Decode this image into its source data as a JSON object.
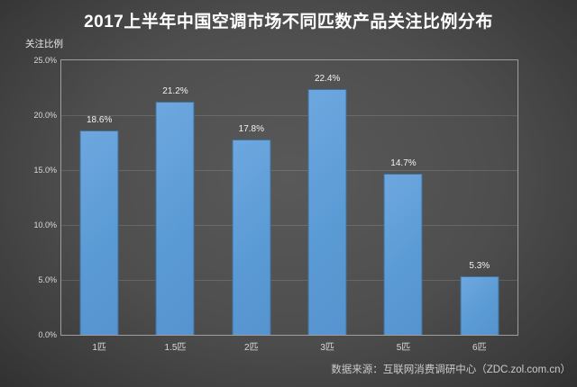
{
  "title": "2017上半年中国空调市场不同匹数产品关注比例分布",
  "y_axis_title": "关注比例",
  "footer_source": "数据来源：互联网消费调研中心（ZDC.zol.com.cn）",
  "colors": {
    "bar_fill": "#5b9bd5",
    "bar_fill_light": "#6ea7df",
    "bar_border": "#41719c",
    "background_center": "#595959",
    "background_edge": "#262626",
    "plot_border": "#9e9e9e",
    "gridline": "rgba(255,255,255,0.13)",
    "title_text": "#ffffff",
    "tick_text": "#d9d9d9",
    "value_label_text": "#f2f2f2",
    "footer_text": "#cbcbcb"
  },
  "chart_data": {
    "type": "bar",
    "title": "2017上半年中国空调市场不同匹数产品关注比例分布",
    "categories": [
      "1匹",
      "1.5匹",
      "2匹",
      "3匹",
      "5匹",
      "6匹"
    ],
    "values": [
      18.6,
      21.2,
      17.8,
      22.4,
      14.7,
      5.3
    ],
    "value_labels": [
      "18.6%",
      "21.2%",
      "17.8%",
      "22.4%",
      "14.7%",
      "5.3%"
    ],
    "xlabel": "",
    "ylabel": "关注比例",
    "ylim": [
      0,
      25
    ],
    "y_ticks": [
      0,
      5,
      10,
      15,
      20,
      25
    ],
    "y_tick_labels": [
      "0.0%",
      "5.0%",
      "10.0%",
      "15.0%",
      "20.0%",
      "25.0%"
    ],
    "grid": true,
    "legend": false,
    "source": "数据来源：互联网消费调研中心（ZDC.zol.com.cn）"
  }
}
